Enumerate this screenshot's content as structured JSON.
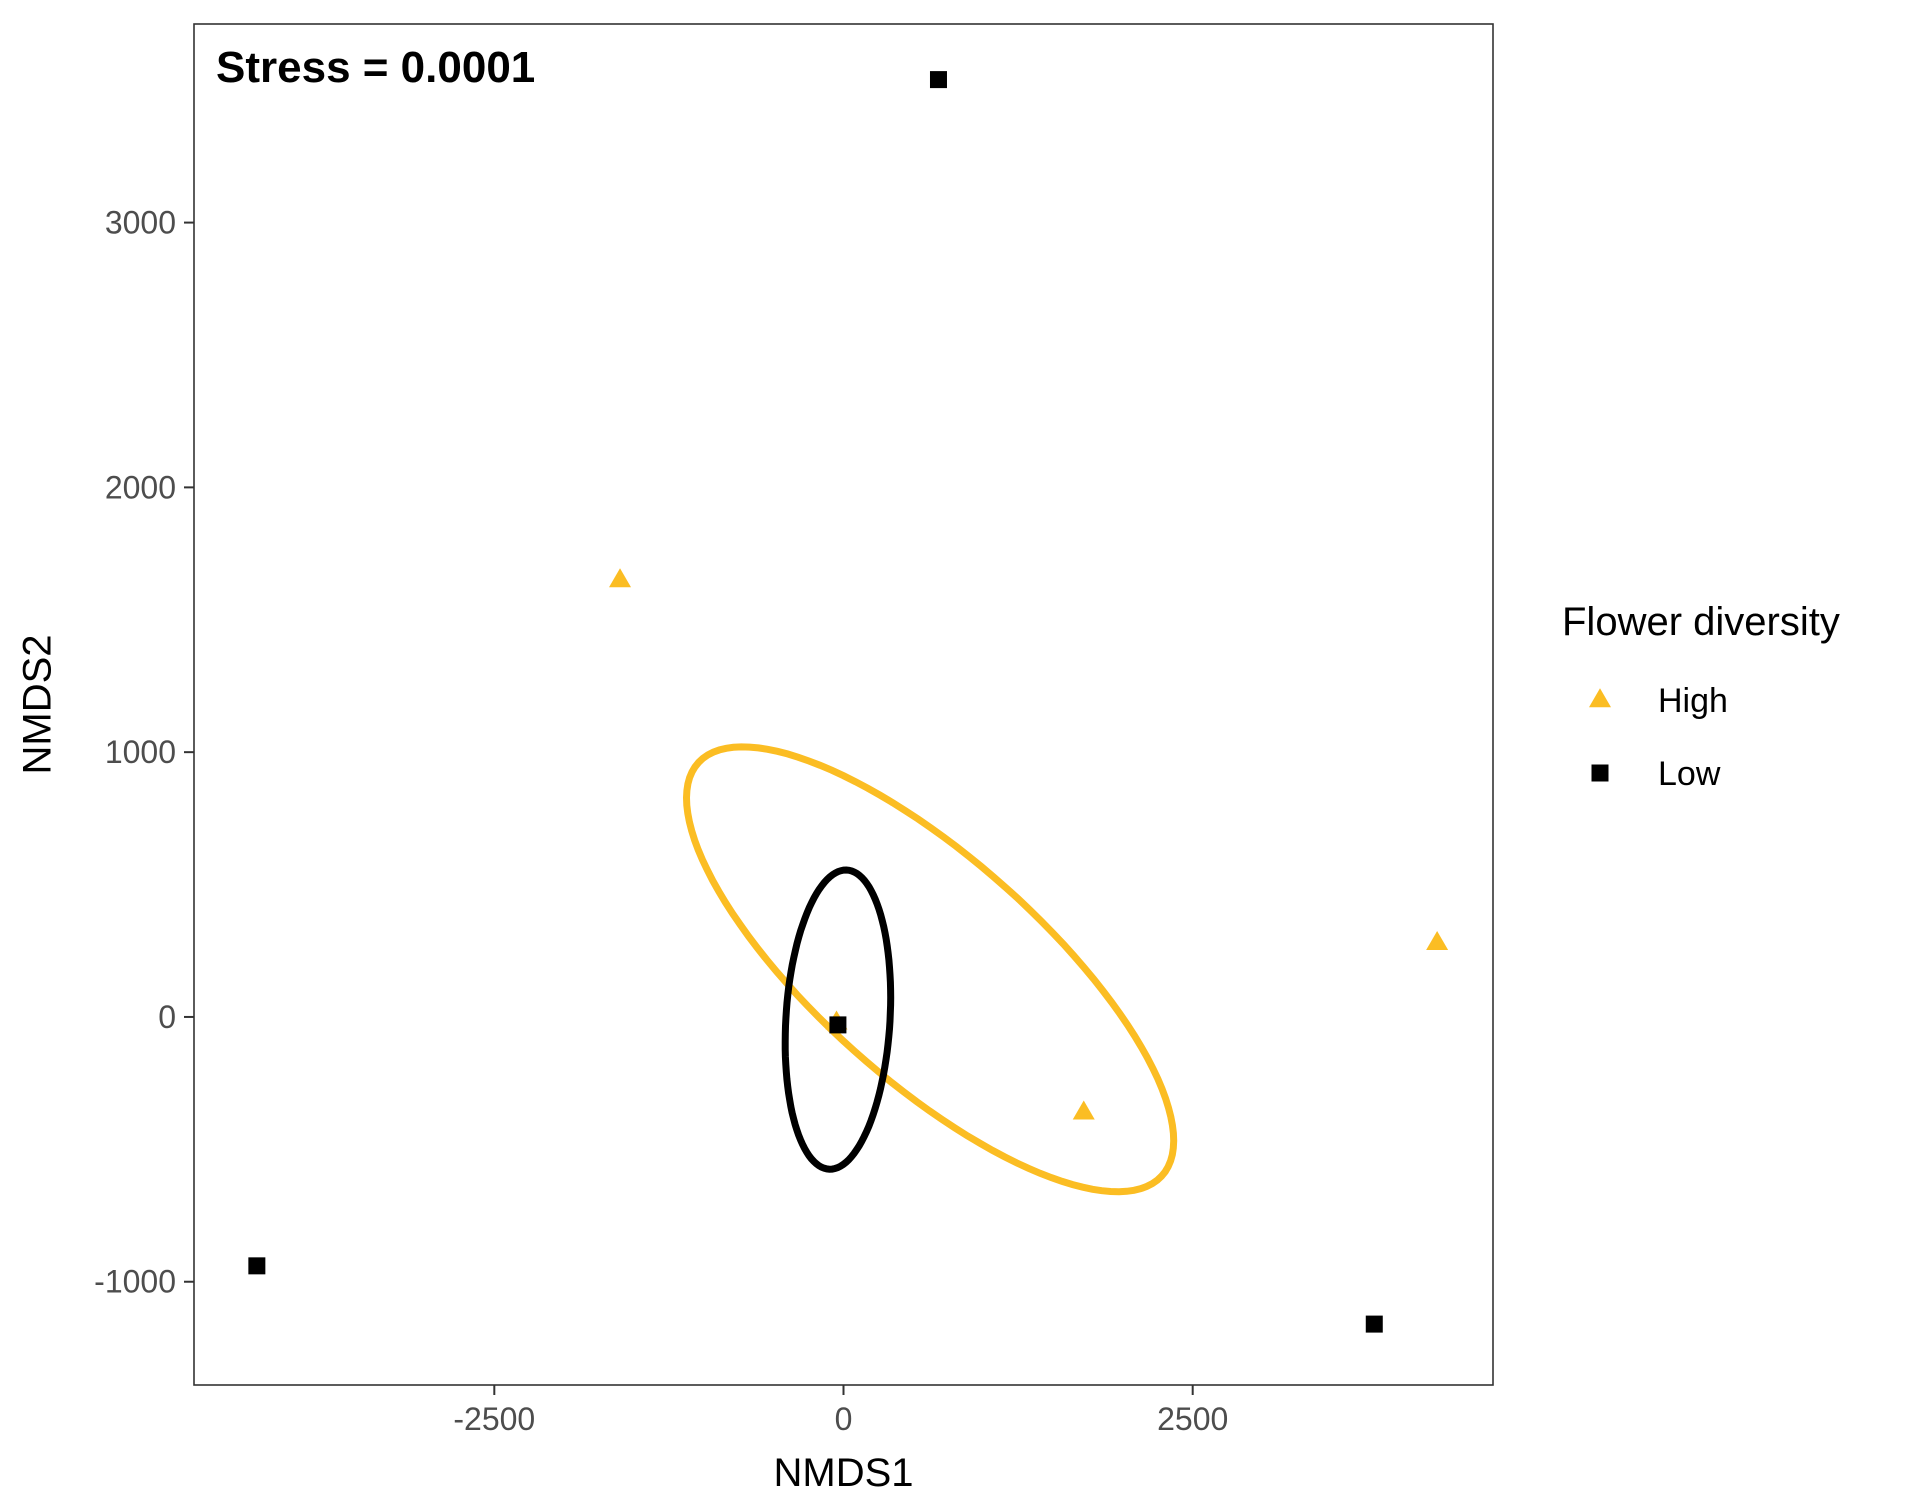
{
  "chart_data": {
    "type": "scatter",
    "title": "",
    "annotation": "Stress = 0.0001",
    "xlabel": "NMDS1",
    "ylabel": "NMDS2",
    "xlim": [
      -4650,
      4650
    ],
    "ylim": [
      -1390,
      3750
    ],
    "xticks": [
      -2500,
      0,
      2500
    ],
    "yticks": [
      -1000,
      0,
      1000,
      2000,
      3000
    ],
    "grid": false,
    "legend": {
      "title": "Flower diversity",
      "position": "right"
    },
    "series": [
      {
        "name": "High",
        "color": "#FBBD23",
        "marker": "triangle",
        "points": [
          {
            "x": -1600,
            "y": 1650
          },
          {
            "x": -50,
            "y": -20
          },
          {
            "x": 1720,
            "y": -360
          },
          {
            "x": 4250,
            "y": 280
          }
        ],
        "ellipse": {
          "cx": 620,
          "cy": 180,
          "rx": 1870,
          "ry": 500,
          "angle_deg": -22
        }
      },
      {
        "name": "Low",
        "color": "#000000",
        "marker": "square",
        "points": [
          {
            "x": 680,
            "y": 3540
          },
          {
            "x": -40,
            "y": -30
          },
          {
            "x": -4200,
            "y": -940
          },
          {
            "x": 3800,
            "y": -1160
          }
        ],
        "ellipse": {
          "cx": -40,
          "cy": -10,
          "rx": 570,
          "ry": 370,
          "angle_deg": 80
        }
      }
    ]
  }
}
